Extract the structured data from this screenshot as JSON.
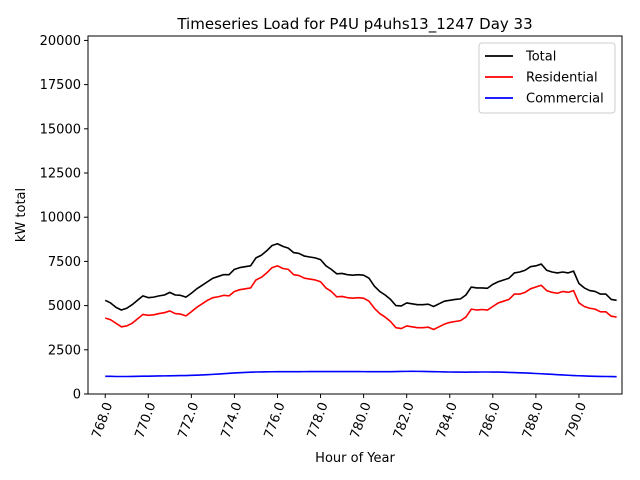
{
  "chart_data": {
    "type": "line",
    "title": "Timeseries Load for P4U p4uhs13_1247  Day 33",
    "xlabel": "Hour of Year",
    "ylabel": "kW total",
    "xlim": [
      767.2,
      792.0
    ],
    "ylim": [
      0,
      20250
    ],
    "xticks": [
      768,
      770,
      772,
      774,
      776,
      778,
      780,
      782,
      784,
      786,
      788,
      790
    ],
    "xtick_labels": [
      "768.0",
      "770.0",
      "772.0",
      "774.0",
      "776.0",
      "778.0",
      "780.0",
      "782.0",
      "784.0",
      "786.0",
      "788.0",
      "790.0"
    ],
    "yticks": [
      0,
      2500,
      5000,
      7500,
      10000,
      12500,
      15000,
      17500,
      20000
    ],
    "ytick_labels": [
      "0",
      "2500",
      "5000",
      "7500",
      "10000",
      "12500",
      "15000",
      "17500",
      "20000"
    ],
    "legend_position": "top-right",
    "x": [
      768.0,
      768.25,
      768.5,
      768.75,
      769.0,
      769.25,
      769.5,
      769.75,
      770.0,
      770.25,
      770.5,
      770.75,
      771.0,
      771.25,
      771.5,
      771.75,
      772.0,
      772.25,
      772.5,
      772.75,
      773.0,
      773.25,
      773.5,
      773.75,
      774.0,
      774.25,
      774.5,
      774.75,
      775.0,
      775.25,
      775.5,
      775.75,
      776.0,
      776.25,
      776.5,
      776.75,
      777.0,
      777.25,
      777.5,
      777.75,
      778.0,
      778.25,
      778.5,
      778.75,
      779.0,
      779.25,
      779.5,
      779.75,
      780.0,
      780.25,
      780.5,
      780.75,
      781.0,
      781.25,
      781.5,
      781.75,
      782.0,
      782.25,
      782.5,
      782.75,
      783.0,
      783.25,
      783.5,
      783.75,
      784.0,
      784.25,
      784.5,
      784.75,
      785.0,
      785.25,
      785.5,
      785.75,
      786.0,
      786.25,
      786.5,
      786.75,
      787.0,
      787.25,
      787.5,
      787.75,
      788.0,
      788.25,
      788.5,
      788.75,
      789.0,
      789.25,
      789.5,
      789.75,
      790.0,
      790.25,
      790.5,
      790.75,
      791.0,
      791.25,
      791.5,
      791.75
    ],
    "series": [
      {
        "name": "Total",
        "color": "#000000",
        "values": [
          5300,
          5150,
          4900,
          4750,
          4850,
          5050,
          5300,
          5550,
          5450,
          5480,
          5550,
          5600,
          5750,
          5600,
          5580,
          5480,
          5700,
          5950,
          6150,
          6350,
          6550,
          6650,
          6750,
          6750,
          7050,
          7150,
          7200,
          7250,
          7700,
          7850,
          8100,
          8400,
          8500,
          8350,
          8250,
          8000,
          7950,
          7800,
          7750,
          7700,
          7600,
          7250,
          7050,
          6800,
          6820,
          6750,
          6720,
          6750,
          6720,
          6550,
          6100,
          5800,
          5600,
          5350,
          5000,
          4980,
          5150,
          5100,
          5050,
          5050,
          5080,
          4950,
          5100,
          5250,
          5300,
          5350,
          5380,
          5600,
          6050,
          6000,
          6000,
          5980,
          6200,
          6350,
          6450,
          6550,
          6850,
          6900,
          7000,
          7200,
          7250,
          7350,
          7000,
          6900,
          6850,
          6900,
          6850,
          6950,
          6250,
          6000,
          5850,
          5800,
          5650,
          5650,
          5350,
          5300
        ]
      },
      {
        "name": "Residential",
        "color": "#ff0000",
        "values": [
          4300,
          4200,
          4000,
          3800,
          3850,
          4000,
          4250,
          4500,
          4450,
          4480,
          4550,
          4600,
          4700,
          4550,
          4520,
          4420,
          4650,
          4900,
          5100,
          5300,
          5450,
          5500,
          5580,
          5550,
          5800,
          5900,
          5950,
          6000,
          6450,
          6600,
          6850,
          7150,
          7250,
          7100,
          7050,
          6750,
          6700,
          6550,
          6500,
          6450,
          6350,
          6000,
          5800,
          5500,
          5520,
          5450,
          5420,
          5450,
          5420,
          5250,
          4850,
          4550,
          4350,
          4100,
          3750,
          3700,
          3850,
          3800,
          3750,
          3750,
          3780,
          3650,
          3800,
          3950,
          4050,
          4100,
          4150,
          4350,
          4800,
          4750,
          4780,
          4750,
          4950,
          5150,
          5250,
          5350,
          5650,
          5650,
          5750,
          5950,
          6050,
          6150,
          5850,
          5750,
          5700,
          5800,
          5750,
          5850,
          5150,
          4950,
          4850,
          4800,
          4650,
          4650,
          4400,
          4350
        ]
      },
      {
        "name": "Commercial",
        "color": "#0000ff",
        "values": [
          1000,
          1000,
          990,
          990,
          990,
          995,
          1000,
          1005,
          1010,
          1015,
          1020,
          1025,
          1030,
          1035,
          1040,
          1045,
          1055,
          1065,
          1080,
          1095,
          1110,
          1130,
          1150,
          1170,
          1190,
          1205,
          1220,
          1235,
          1245,
          1250,
          1255,
          1258,
          1260,
          1262,
          1263,
          1264,
          1265,
          1266,
          1267,
          1268,
          1268,
          1269,
          1269,
          1270,
          1270,
          1270,
          1270,
          1268,
          1266,
          1264,
          1262,
          1260,
          1262,
          1265,
          1270,
          1275,
          1280,
          1282,
          1280,
          1275,
          1270,
          1265,
          1258,
          1250,
          1245,
          1240,
          1238,
          1236,
          1240,
          1242,
          1245,
          1245,
          1243,
          1240,
          1232,
          1222,
          1210,
          1200,
          1190,
          1175,
          1160,
          1145,
          1130,
          1112,
          1095,
          1078,
          1060,
          1045,
          1032,
          1020,
          1010,
          1002,
          996,
          990,
          985,
          980
        ]
      }
    ]
  }
}
